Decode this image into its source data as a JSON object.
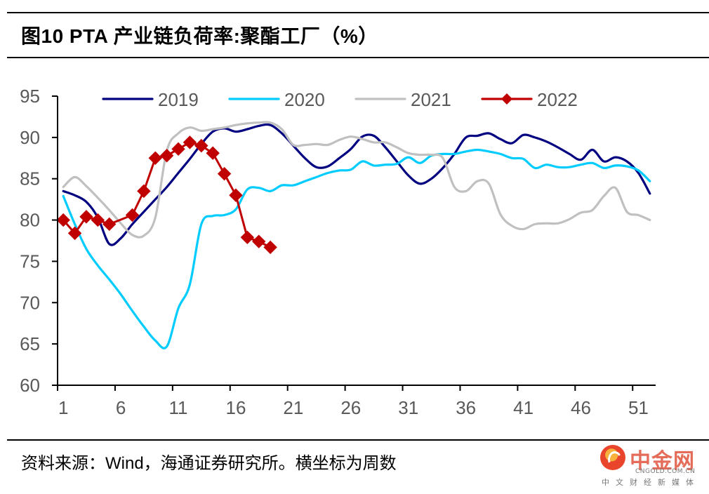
{
  "title": "图10 PTA 产业链负荷率:聚酯工厂（%）",
  "source_note": "资料来源：Wind，海通证券研究所。横坐标为周数",
  "watermark": {
    "name": "中金网",
    "url": "CNGOLD.COM.CN",
    "tagline": "中文财经新媒体"
  },
  "chart_data": {
    "type": "line",
    "title": "图10 PTA 产业链负荷率:聚酯工厂（%）",
    "xlabel": "周数",
    "ylabel": "%",
    "x": [
      1,
      2,
      3,
      4,
      5,
      6,
      7,
      8,
      9,
      10,
      11,
      12,
      13,
      14,
      15,
      16,
      17,
      18,
      19,
      20,
      21,
      22,
      23,
      24,
      25,
      26,
      27,
      28,
      29,
      30,
      31,
      32,
      33,
      34,
      35,
      36,
      37,
      38,
      39,
      40,
      41,
      42,
      43,
      44,
      45,
      46,
      47,
      48,
      49,
      50,
      51,
      52
    ],
    "x_tick_labels": [
      "1",
      "6",
      "11",
      "16",
      "21",
      "26",
      "31",
      "36",
      "41",
      "46",
      "51"
    ],
    "y_tick_labels": [
      "60",
      "65",
      "70",
      "75",
      "80",
      "85",
      "90",
      "95"
    ],
    "ylim": [
      60,
      95
    ],
    "y_ticks": [
      60,
      65,
      70,
      75,
      80,
      85,
      90,
      95
    ],
    "grid": false,
    "legend_position": "top",
    "series": [
      {
        "name": "2019",
        "color": "#000080",
        "marker": "none",
        "smooth": true,
        "values": [
          83.5,
          83.0,
          82.2,
          80.3,
          77.1,
          77.8,
          79.5,
          81.0,
          82.5,
          84.0,
          85.7,
          87.4,
          89.2,
          90.7,
          91.1,
          90.7,
          91.0,
          91.4,
          91.5,
          90.5,
          89.0,
          87.5,
          86.4,
          86.5,
          87.5,
          88.6,
          90.1,
          90.2,
          88.8,
          87.1,
          85.4,
          84.4,
          85.0,
          86.3,
          88.0,
          90.0,
          90.2,
          90.5,
          89.8,
          89.3,
          90.3,
          90.0,
          89.5,
          88.8,
          88.0,
          87.3,
          88.5,
          87.1,
          87.6,
          87.1,
          85.7,
          83.2
        ]
      },
      {
        "name": "2020",
        "color": "#00CCFF",
        "marker": "none",
        "smooth": true,
        "values": [
          82.9,
          79.5,
          76.5,
          74.5,
          72.8,
          71.0,
          69.0,
          67.1,
          65.4,
          64.7,
          69.3,
          72.2,
          79.5,
          80.5,
          80.6,
          81.3,
          83.7,
          83.9,
          83.5,
          84.2,
          84.2,
          84.7,
          85.2,
          85.7,
          86.0,
          86.1,
          87.1,
          86.6,
          86.7,
          86.8,
          87.6,
          86.9,
          87.8,
          88.0,
          88.0,
          88.3,
          88.5,
          88.3,
          88.0,
          87.5,
          87.4,
          86.3,
          86.7,
          86.4,
          86.4,
          86.7,
          86.9,
          86.3,
          86.6,
          86.5,
          86.0,
          84.7
        ]
      },
      {
        "name": "2021",
        "color": "#C0C0C0",
        "marker": "none",
        "smooth": true,
        "values": [
          84.0,
          85.2,
          84.1,
          82.7,
          81.2,
          79.6,
          78.2,
          78.1,
          80.3,
          88.4,
          90.5,
          91.2,
          90.8,
          91.0,
          91.2,
          91.5,
          91.7,
          91.8,
          91.8,
          91.0,
          89.1,
          89.1,
          89.2,
          89.1,
          89.7,
          90.1,
          89.8,
          89.4,
          89.4,
          88.8,
          88.1,
          87.9,
          87.9,
          87.5,
          84.0,
          83.5,
          84.7,
          84.4,
          80.7,
          79.3,
          78.9,
          79.5,
          79.6,
          79.6,
          80.1,
          80.9,
          81.2,
          82.9,
          83.9,
          81.0,
          80.6,
          80.0
        ]
      },
      {
        "name": "2022",
        "color": "#C00000",
        "marker": "diamond",
        "smooth": false,
        "values": [
          80.0,
          78.4,
          80.4,
          80.0,
          79.5,
          null,
          80.6,
          83.5,
          87.5,
          87.8,
          88.6,
          89.4,
          89.0,
          88.1,
          85.6,
          83.0,
          77.9,
          77.4,
          76.7
        ]
      }
    ]
  }
}
